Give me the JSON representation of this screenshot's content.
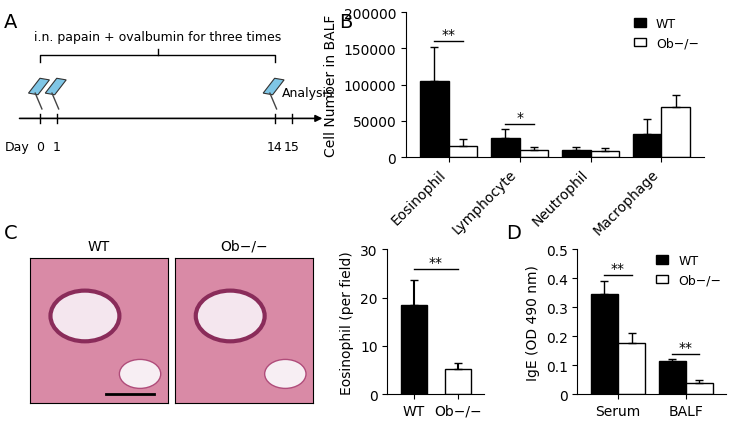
{
  "panel_labels": [
    "A",
    "B",
    "C",
    "D"
  ],
  "timeline": {
    "annotation": "i.n. papain + ovalbumin for three times",
    "axis_label": "Day",
    "days": [
      0,
      1,
      14,
      15
    ],
    "injection_days": [
      0,
      1,
      14
    ],
    "end_label": "Analysis"
  },
  "images": {
    "titles": [
      "WT",
      "Ob−/−"
    ]
  },
  "chart_data": [
    {
      "type": "bar",
      "ylabel": "Cell Number in BALF",
      "categories": [
        "Eosinophil",
        "Lymphocyte",
        "Neutrophil",
        "Macrophage"
      ],
      "series": [
        {
          "name": "WT",
          "color": "#000000",
          "values": [
            105000,
            26000,
            10000,
            32000
          ],
          "errors": [
            47000,
            13000,
            4000,
            20000
          ]
        },
        {
          "name": "Ob−/−",
          "color": "#ffffff",
          "values": [
            15000,
            10000,
            8000,
            69000
          ],
          "errors": [
            10000,
            4000,
            5000,
            17000
          ]
        }
      ],
      "ylim": [
        0,
        200000
      ],
      "yticks": [
        0,
        50000,
        100000,
        150000,
        200000
      ],
      "legend": "upper right",
      "significance": [
        {
          "category": "Eosinophil",
          "label": "**",
          "y": 160000
        },
        {
          "category": "Lymphocyte",
          "label": "*",
          "y": 45000
        }
      ]
    },
    {
      "type": "bar",
      "ylabel": "Eosinophil (per field)",
      "categories": [
        "WT",
        "Ob−/−"
      ],
      "values": [
        18.5,
        5.2
      ],
      "errors": [
        5.2,
        1.2
      ],
      "colors": [
        "#000000",
        "#ffffff"
      ],
      "ylim": [
        0,
        30
      ],
      "yticks": [
        0,
        10,
        20,
        30
      ],
      "significance": [
        {
          "label": "**",
          "y": 26
        }
      ]
    },
    {
      "type": "bar",
      "ylabel": "IgE (OD 490 nm)",
      "categories": [
        "Serum",
        "BALF"
      ],
      "series": [
        {
          "name": "WT",
          "color": "#000000",
          "values": [
            0.345,
            0.115
          ],
          "errors": [
            0.045,
            0.005
          ]
        },
        {
          "name": "Ob−/−",
          "color": "#ffffff",
          "values": [
            0.175,
            0.04
          ],
          "errors": [
            0.035,
            0.008
          ]
        }
      ],
      "ylim": [
        0,
        0.5
      ],
      "yticks": [
        0,
        0.1,
        0.2,
        0.3,
        0.4,
        0.5
      ],
      "legend": "upper right",
      "significance": [
        {
          "category": "Serum",
          "label": "**",
          "y": 0.41
        },
        {
          "category": "BALF",
          "label": "**",
          "y": 0.14
        }
      ]
    }
  ]
}
